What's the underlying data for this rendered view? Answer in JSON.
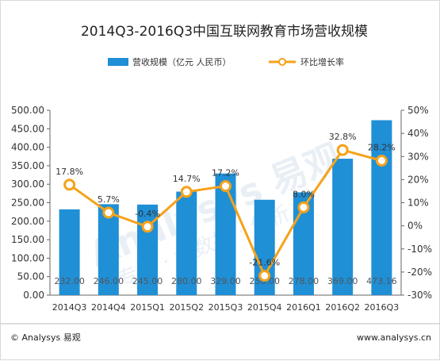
{
  "chart_data": {
    "type": "bar+line",
    "title": "2014Q3-2016Q3中国互联网教育市场营收规模",
    "categories": [
      "2014Q3",
      "2014Q4",
      "2015Q1",
      "2015Q2",
      "2015Q3",
      "2015Q4",
      "2016Q1",
      "2016Q2",
      "2016Q3"
    ],
    "series": [
      {
        "name": "营收规模（亿元 人民币）",
        "type": "bar",
        "axis": "left",
        "color": "#1f8fd6",
        "values": [
          232.0,
          246.0,
          245.0,
          280.0,
          329.0,
          258.0,
          278.0,
          369.0,
          473.16
        ],
        "labels": [
          "232.00",
          "246.00",
          "245.00",
          "280.00",
          "329.00",
          "258.00",
          "278.00",
          "369.00",
          "473.16"
        ]
      },
      {
        "name": "环比增长率",
        "type": "line",
        "axis": "right",
        "color": "#f5a21b",
        "values": [
          17.8,
          5.7,
          -0.4,
          14.7,
          17.2,
          -21.6,
          8.0,
          32.8,
          28.2
        ],
        "labels": [
          "17.8%",
          "5.7%",
          "-0.4%",
          "14.7%",
          "17.2%",
          "-21.6%",
          "8.0%",
          "32.8%",
          "28.2%"
        ]
      }
    ],
    "y_left": {
      "min": 0,
      "max": 500,
      "ticks": [
        "0.00",
        "50.00",
        "100.00",
        "150.00",
        "200.00",
        "250.00",
        "300.00",
        "350.00",
        "400.00",
        "450.00",
        "500.00"
      ]
    },
    "y_right": {
      "min": -30,
      "max": 50,
      "ticks": [
        "-30%",
        "-20%",
        "-10%",
        "0%",
        "10%",
        "20%",
        "30%",
        "40%",
        "50%"
      ]
    },
    "legend_position": "top-center",
    "grid": false
  },
  "footer": {
    "left": "© Analysys 易观",
    "right": "www.analysys.cn"
  },
  "watermark": {
    "main": "Analysys 易观",
    "sub": "专注 · 大数据 · 分析"
  }
}
